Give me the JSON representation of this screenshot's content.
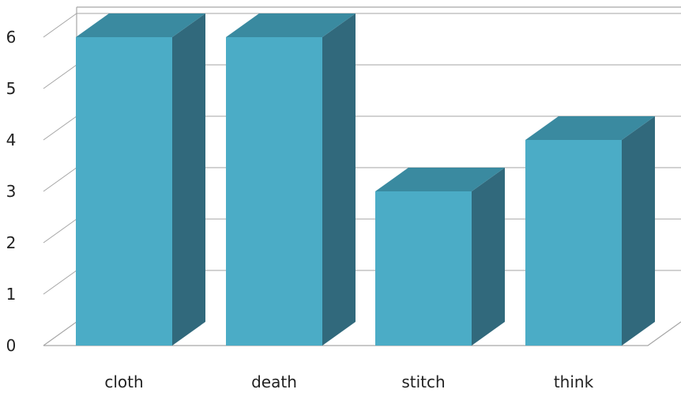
{
  "chart_data": {
    "type": "bar",
    "style": "3d-column",
    "title": "",
    "xlabel": "",
    "ylabel": "",
    "categories": [
      "cloth",
      "death",
      "stitch",
      "think"
    ],
    "values": [
      6,
      6,
      3,
      4
    ],
    "ylim": [
      0,
      6
    ],
    "yticks": [
      "0",
      "1",
      "2",
      "3",
      "4",
      "5",
      "6"
    ],
    "grid": true,
    "legend": "none",
    "colors": {
      "front": "#4bacc6",
      "side": "#31697c",
      "top": "#3a8aa0",
      "grid": "#a6a6a6",
      "text": "#222222"
    }
  }
}
